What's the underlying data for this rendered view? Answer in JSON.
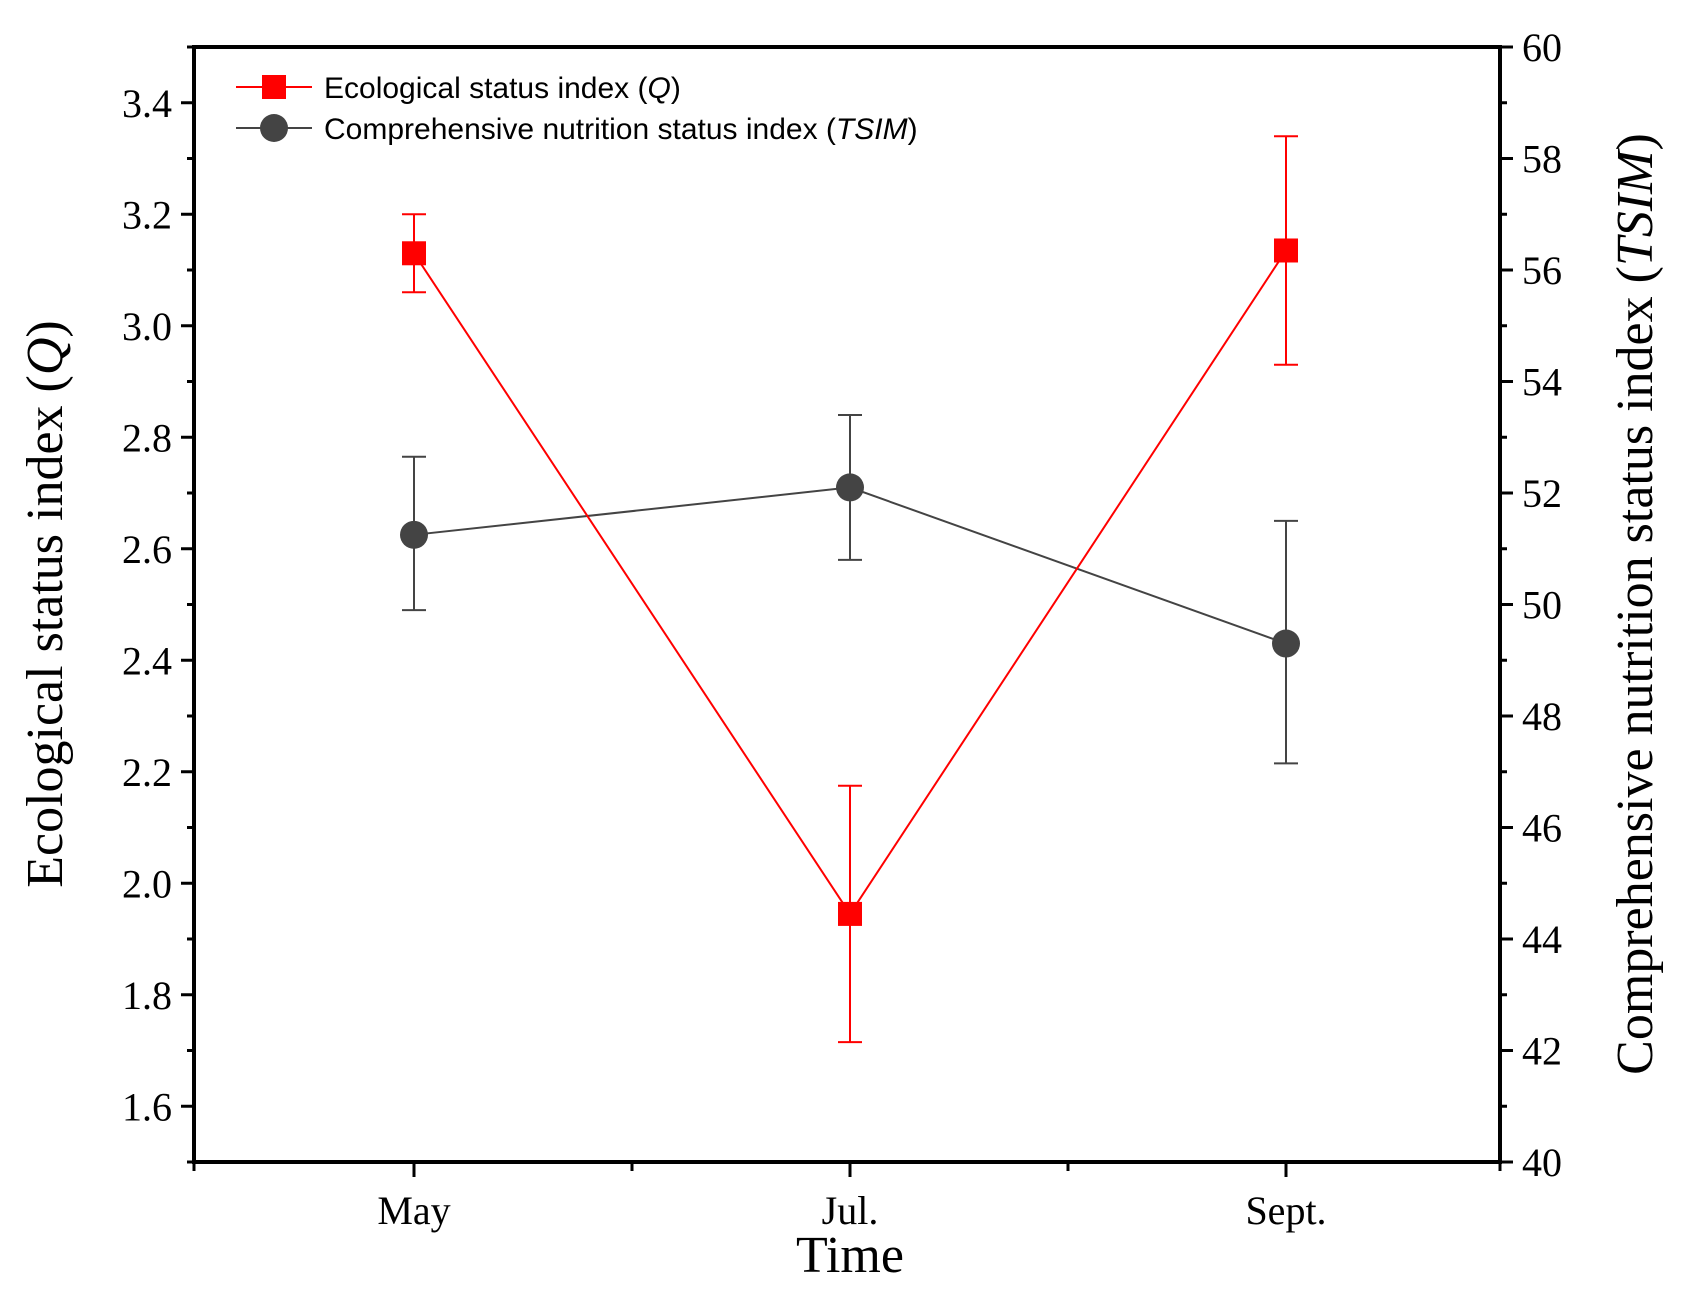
{
  "chart_data": {
    "type": "line",
    "title": "",
    "xlabel": "Time",
    "ylabel": "Ecological status index (Q)",
    "ylabel_parts": {
      "prefix": "Ecological status index (",
      "var": "Q",
      "suffix": ")"
    },
    "y2label": "Comprehensive nutrition status index (TSIM)",
    "y2label_parts": {
      "prefix": "Comprehensive nutrition status index (",
      "var": "TSIM",
      "suffix": ")"
    },
    "categories": [
      "May",
      "Jul.",
      "Sept."
    ],
    "ylim": [
      1.5,
      3.5
    ],
    "y2lim": [
      40,
      60
    ],
    "yticks": [
      "1.6",
      "1.8",
      "2.0",
      "2.2",
      "2.4",
      "2.6",
      "2.8",
      "3.0",
      "3.2",
      "3.4"
    ],
    "y2ticks": [
      "40",
      "42",
      "44",
      "46",
      "48",
      "50",
      "52",
      "54",
      "56",
      "58",
      "60"
    ],
    "grid": false,
    "legend_position": "top-left",
    "series": [
      {
        "name": "Ecological status index (Q)",
        "name_parts": {
          "prefix": "Ecological status index (",
          "var": "Q",
          "suffix": ")"
        },
        "axis": "left",
        "marker": "square",
        "color": "#ff0000",
        "values": [
          3.13,
          1.945,
          3.135
        ],
        "err_low": [
          3.06,
          1.715,
          2.93
        ],
        "err_high": [
          3.2,
          2.175,
          3.34
        ]
      },
      {
        "name": "Comprehensive nutrition status index (TSIM)",
        "name_parts": {
          "prefix": "Comprehensive nutrition status index (",
          "var": "TSIM",
          "suffix": ")"
        },
        "axis": "right",
        "marker": "circle",
        "color": "#444444",
        "values": [
          51.25,
          52.1,
          49.3
        ],
        "err_low": [
          49.9,
          50.8,
          47.15
        ],
        "err_high": [
          52.65,
          53.4,
          51.5
        ]
      }
    ]
  }
}
